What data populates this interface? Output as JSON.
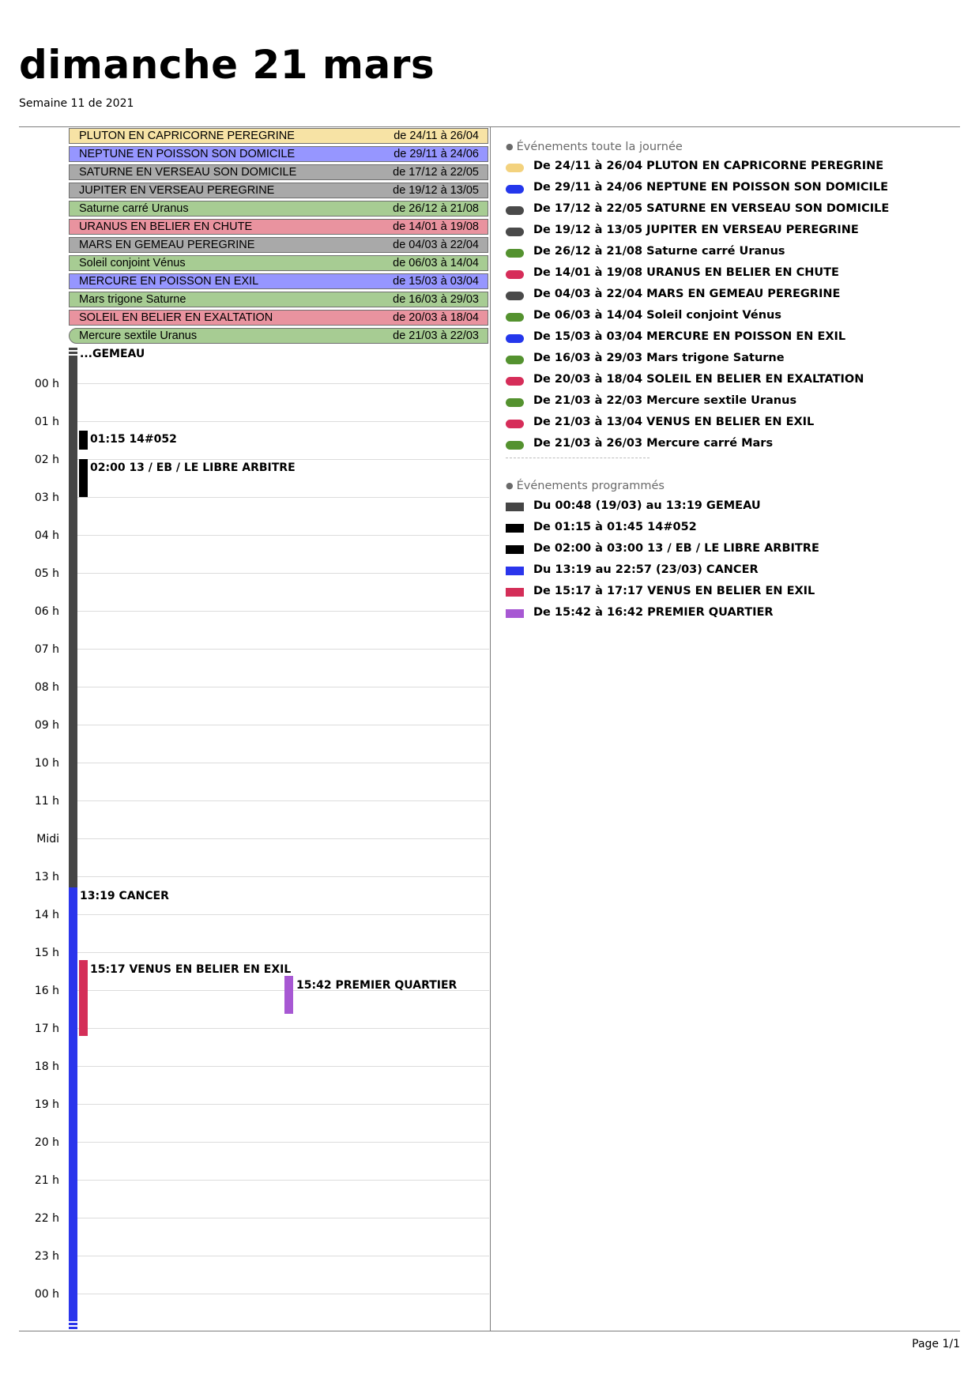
{
  "header": {
    "title": "dimanche 21 mars",
    "subtitle": "Semaine 11 de 2021"
  },
  "colors": {
    "yellow": "#f7e3a5",
    "blue": "#9696ff",
    "gray": "#a9a9a9",
    "green": "#a7cc93",
    "pink": "#e9939f",
    "timeline_gray": "#454545",
    "timeline_blue": "#2a35ec",
    "event_black": "#000000",
    "event_red": "#d42e58",
    "event_purple": "#a758d3",
    "legend_yellow": "#f3d27e",
    "legend_blue": "#2437ec",
    "legend_gray": "#4a4a4a",
    "legend_green": "#54922f",
    "legend_red": "#d62d59"
  },
  "allday_bars": [
    {
      "label": "PLUTON EN CAPRICORNE PEREGRINE",
      "range": "de 24/11 à 26/04"
    },
    {
      "label": "NEPTUNE EN POISSON SON DOMICILE",
      "range": "de 29/11 à 24/06"
    },
    {
      "label": "SATURNE EN VERSEAU SON DOMICILE",
      "range": "de 17/12 à 22/05"
    },
    {
      "label": "JUPITER EN VERSEAU PEREGRINE",
      "range": "de 19/12 à 13/05"
    },
    {
      "label": "Saturne carré Uranus",
      "range": "de 26/12 à 21/08"
    },
    {
      "label": "URANUS EN BELIER EN CHUTE",
      "range": "de 14/01 à 19/08"
    },
    {
      "label": "MARS EN GEMEAU PEREGRINE",
      "range": "de 04/03 à 22/04"
    },
    {
      "label": "Soleil conjoint Vénus",
      "range": "de 06/03 à 14/04"
    },
    {
      "label": "MERCURE EN POISSON EN EXIL",
      "range": "de 15/03 à 03/04"
    },
    {
      "label": "Mars trigone Saturne",
      "range": "de 16/03 à 29/03"
    },
    {
      "label": "SOLEIL EN BELIER EN EXALTATION",
      "range": "de 20/03 à 18/04"
    },
    {
      "label": "Mercure sextile Uranus",
      "range": "de 21/03 à 22/03"
    }
  ],
  "hours": [
    "00 h",
    "01 h",
    "02 h",
    "03 h",
    "04 h",
    "05 h",
    "06 h",
    "07 h",
    "08 h",
    "09 h",
    "10 h",
    "11 h",
    "Midi",
    "13 h",
    "14 h",
    "15 h",
    "16 h",
    "17 h",
    "18 h",
    "19 h",
    "20 h",
    "21 h",
    "22 h",
    "23 h",
    "00 h"
  ],
  "timeline_events": [
    {
      "label": "...GEMEAU"
    },
    {
      "label": "01:15 14#052"
    },
    {
      "label": "02:00 13 / EB / LE LIBRE ARBITRE"
    },
    {
      "label": "13:19 CANCER"
    },
    {
      "label": "15:17 VENUS EN BELIER EN EXIL"
    },
    {
      "label": "15:42 PREMIER QUARTIER"
    }
  ],
  "legend": {
    "allday_header": "Événements toute la journée",
    "allday_items": [
      {
        "text": "De 24/11 à 26/04 PLUTON EN CAPRICORNE PEREGRINE"
      },
      {
        "text": "De 29/11 à 24/06 NEPTUNE EN POISSON SON DOMICILE"
      },
      {
        "text": "De 17/12 à 22/05 SATURNE EN VERSEAU SON DOMICILE"
      },
      {
        "text": "De 19/12 à 13/05 JUPITER EN VERSEAU PEREGRINE"
      },
      {
        "text": "De 26/12 à 21/08 Saturne carré Uranus"
      },
      {
        "text": "De 14/01 à 19/08 URANUS EN BELIER EN CHUTE"
      },
      {
        "text": "De 04/03 à 22/04 MARS EN GEMEAU PEREGRINE"
      },
      {
        "text": "De 06/03 à 14/04 Soleil conjoint Vénus"
      },
      {
        "text": "De 15/03 à 03/04 MERCURE EN POISSON EN EXIL"
      },
      {
        "text": "De 16/03 à 29/03 Mars trigone Saturne"
      },
      {
        "text": "De 20/03 à 18/04 SOLEIL EN BELIER EN EXALTATION"
      },
      {
        "text": "De 21/03 à 22/03 Mercure sextile Uranus"
      },
      {
        "text": "De 21/03 à 13/04 VENUS EN BELIER EN EXIL"
      },
      {
        "text": "De 21/03 à 26/03 Mercure carré Mars"
      }
    ],
    "scheduled_header": "Événements programmés",
    "scheduled_items": [
      {
        "text": "Du 00:48 (19/03) au 13:19 GEMEAU"
      },
      {
        "text": "De 01:15 à 01:45 14#052"
      },
      {
        "text": "De 02:00 à 03:00 13 / EB / LE LIBRE ARBITRE"
      },
      {
        "text": "Du 13:19 au 22:57 (23/03) CANCER"
      },
      {
        "text": "De 15:17 à 17:17 VENUS EN BELIER EN EXIL"
      },
      {
        "text": "De 15:42 à 16:42 PREMIER QUARTIER"
      }
    ]
  },
  "footer": {
    "page": "Page 1/1"
  }
}
